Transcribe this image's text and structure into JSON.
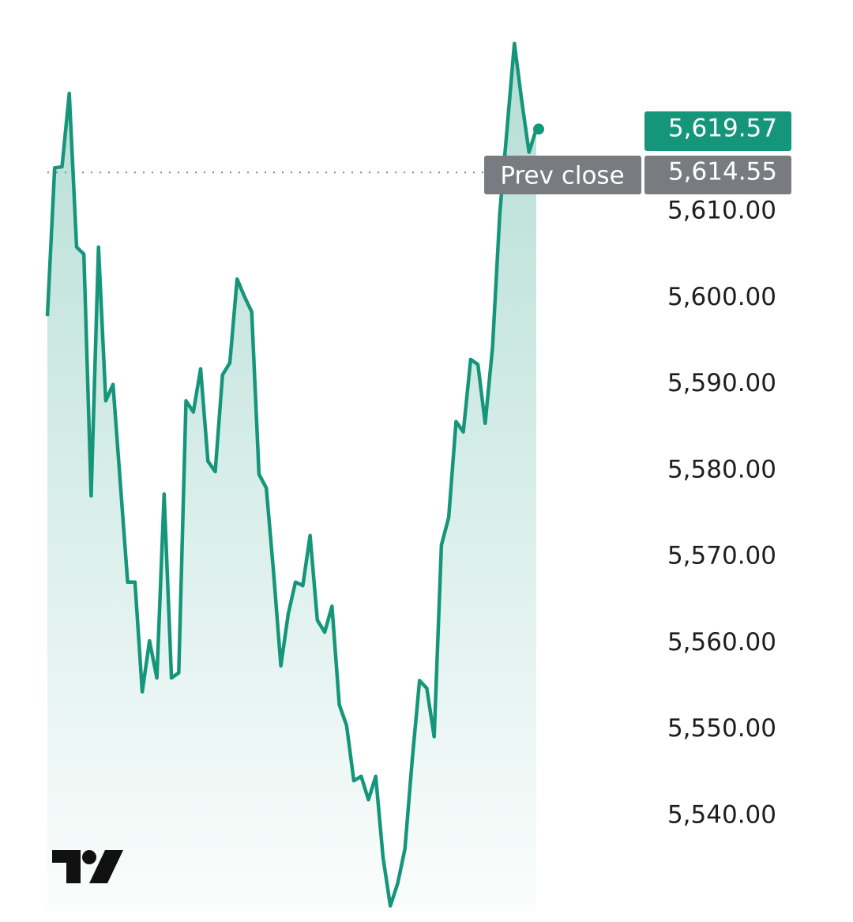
{
  "chart_data": {
    "type": "area",
    "color": "#15967a",
    "values": [
      5597.9,
      5615.1,
      5615.2,
      5623.7,
      5605.9,
      5605.1,
      5577.1,
      5605.9,
      5588.1,
      5590.0,
      5578.5,
      5567.1,
      5567.1,
      5554.4,
      5560.3,
      5556.0,
      5577.3,
      5556.0,
      5556.6,
      5588.1,
      5586.8,
      5591.8,
      5581.1,
      5579.9,
      5591.1,
      5592.5,
      5602.2,
      5600.2,
      5598.4,
      5579.6,
      5578.0,
      5568.2,
      5557.4,
      5563.4,
      5567.1,
      5566.7,
      5572.5,
      5562.7,
      5561.3,
      5564.3,
      5552.9,
      5550.5,
      5544.1,
      5544.6,
      5541.9,
      5544.6,
      5535.2,
      5529.6,
      5532.2,
      5536.2,
      5546.5,
      5555.7,
      5554.8,
      5549.2,
      5571.4,
      5574.6,
      5585.7,
      5584.5,
      5592.9,
      5592.3,
      5585.5,
      5594.3,
      5609.8,
      5619.6,
      5629.5,
      5622.9,
      5616.9,
      5619.57
    ],
    "ylim": [
      5529,
      5635
    ],
    "yticks": [
      {
        "value": 5540,
        "label": "5,540.00"
      },
      {
        "value": 5550,
        "label": "5,550.00"
      },
      {
        "value": 5560,
        "label": "5,560.00"
      },
      {
        "value": 5570,
        "label": "5,570.00"
      },
      {
        "value": 5580,
        "label": "5,580.00"
      },
      {
        "value": 5590,
        "label": "5,590.00"
      },
      {
        "value": 5600,
        "label": "5,600.00"
      },
      {
        "value": 5610,
        "label": "5,610.00"
      }
    ],
    "last_price": {
      "value": 5619.57,
      "label": "5,619.57"
    },
    "prev_close": {
      "name": "Prev close",
      "value": 5614.55,
      "label": "5,614.55"
    }
  }
}
